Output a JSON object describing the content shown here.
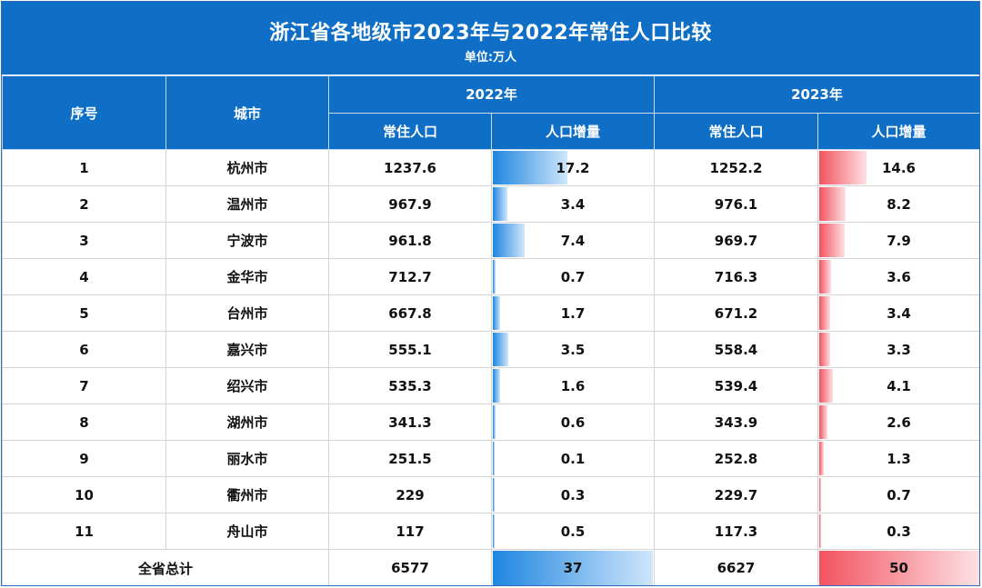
{
  "title": "浙江省各地级市2023年与2022年常住人口比较",
  "subtitle": "单位:万人",
  "headers": {
    "index": "序号",
    "city": "城市",
    "year_2022": "2022年",
    "year_2023": "2023年",
    "population": "常住人口",
    "growth": "人口增量"
  },
  "chart_data": {
    "type": "table",
    "rows": [
      {
        "index": "1",
        "city": "杭州市",
        "pop2022": "1237.6",
        "inc2022": "17.2",
        "pop2023": "1252.2",
        "inc2023": "14.6"
      },
      {
        "index": "2",
        "city": "温州市",
        "pop2022": "967.9",
        "inc2022": "3.4",
        "pop2023": "976.1",
        "inc2023": "8.2"
      },
      {
        "index": "3",
        "city": "宁波市",
        "pop2022": "961.8",
        "inc2022": "7.4",
        "pop2023": "969.7",
        "inc2023": "7.9"
      },
      {
        "index": "4",
        "city": "金华市",
        "pop2022": "712.7",
        "inc2022": "0.7",
        "pop2023": "716.3",
        "inc2023": "3.6"
      },
      {
        "index": "5",
        "city": "台州市",
        "pop2022": "667.8",
        "inc2022": "1.7",
        "pop2023": "671.2",
        "inc2023": "3.4"
      },
      {
        "index": "6",
        "city": "嘉兴市",
        "pop2022": "555.1",
        "inc2022": "3.5",
        "pop2023": "558.4",
        "inc2023": "3.3"
      },
      {
        "index": "7",
        "city": "绍兴市",
        "pop2022": "535.3",
        "inc2022": "1.6",
        "pop2023": "539.4",
        "inc2023": "4.1"
      },
      {
        "index": "8",
        "city": "湖州市",
        "pop2022": "341.3",
        "inc2022": "0.6",
        "pop2023": "343.9",
        "inc2023": "2.6"
      },
      {
        "index": "9",
        "city": "丽水市",
        "pop2022": "251.5",
        "inc2022": "0.1",
        "pop2023": "252.8",
        "inc2023": "1.3"
      },
      {
        "index": "10",
        "city": "衢州市",
        "pop2022": "229",
        "inc2022": "0.3",
        "pop2023": "229.7",
        "inc2023": "0.7"
      },
      {
        "index": "11",
        "city": "舟山市",
        "pop2022": "117",
        "inc2022": "0.5",
        "pop2023": "117.3",
        "inc2023": "0.3"
      }
    ],
    "total": {
      "label": "全省总计",
      "pop2022": "6577",
      "inc2022": "37",
      "pop2023": "6627",
      "inc2023": "50"
    },
    "bar_colors": {
      "growth_2022": "#1f86e0",
      "growth_2023": "#f25360"
    }
  },
  "colors": {
    "header_bg": "#0f6fc6",
    "header_text": "#ffffff"
  }
}
